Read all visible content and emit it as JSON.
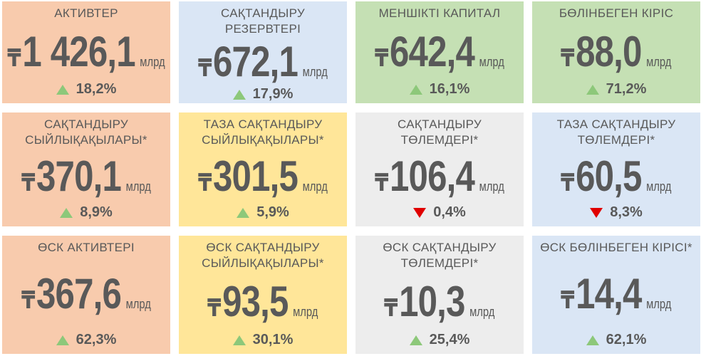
{
  "cards": [
    {
      "title": "АКТИВТЕР",
      "currency": "₸",
      "value": "1 426,1",
      "unit": "млрд",
      "change": "18,2%",
      "direction": "up",
      "color": "#f8cbad"
    },
    {
      "title": "САҚТАНДЫРУ РЕЗЕРВТЕРІ",
      "currency": "₸",
      "value": "672,1",
      "unit": "млрд",
      "change": "17,9%",
      "direction": "up",
      "color": "#dae6f5"
    },
    {
      "title": "МЕНШІКТІ КАПИТАЛ",
      "currency": "₸",
      "value": "642,4",
      "unit": "млрд",
      "change": "16,1%",
      "direction": "up",
      "color": "#c5e0b4"
    },
    {
      "title": "БӨЛІНБЕГЕН КІРІС",
      "currency": "₸",
      "value": "88,0",
      "unit": "млрд",
      "change": "71,2%",
      "direction": "up",
      "color": "#c5e0b4"
    },
    {
      "title": "САҚТАНДЫРУ\nСЫЙЛЫҚАҚЫЛАРЫ*",
      "currency": "₸",
      "value": "370,1",
      "unit": "млрд",
      "change": "8,9%",
      "direction": "up",
      "color": "#f8cbad"
    },
    {
      "title": "ТАЗА САҚТАНДЫРУ\nСЫЙЛЫҚАҚЫЛАРЫ*",
      "currency": "₸",
      "value": "301,5",
      "unit": "млрд",
      "change": "5,9%",
      "direction": "up",
      "color": "#ffe699"
    },
    {
      "title": "САҚТАНДЫРУ ТӨЛЕМДЕРІ*",
      "currency": "₸",
      "value": "106,4",
      "unit": "млрд",
      "change": "0,4%",
      "direction": "down",
      "color": "#ededed"
    },
    {
      "title": "ТАЗА САҚТАНДЫРУ\nТӨЛЕМДЕРІ*",
      "currency": "₸",
      "value": "60,5",
      "unit": "млрд",
      "change": "8,3%",
      "direction": "down",
      "color": "#dae6f5"
    },
    {
      "title": "ӨСК АКТИВТЕРІ",
      "currency": "₸",
      "value": "367,6",
      "unit": "млрд",
      "change": "62,3%",
      "direction": "up",
      "color": "#f8cbad"
    },
    {
      "title": "ӨСК САҚТАНДЫРУ\nСЫЙЛЫҚАҚЫЛАРЫ*",
      "currency": "₸",
      "value": "93,5",
      "unit": "млрд",
      "change": "30,1%",
      "direction": "up",
      "color": "#ffe699"
    },
    {
      "title": "ӨСК САҚТАНДЫРУ\nТӨЛЕМДЕРІ*",
      "currency": "₸",
      "value": "10,3",
      "unit": "млрд",
      "change": "25,4%",
      "direction": "up",
      "color": "#ededed"
    },
    {
      "title": "ӨСК БӨЛІНБЕГЕН КІРІСІ*",
      "currency": "₸",
      "value": "14,4",
      "unit": "млрд",
      "change": "62,1%",
      "direction": "up",
      "color": "#dae6f5"
    }
  ]
}
